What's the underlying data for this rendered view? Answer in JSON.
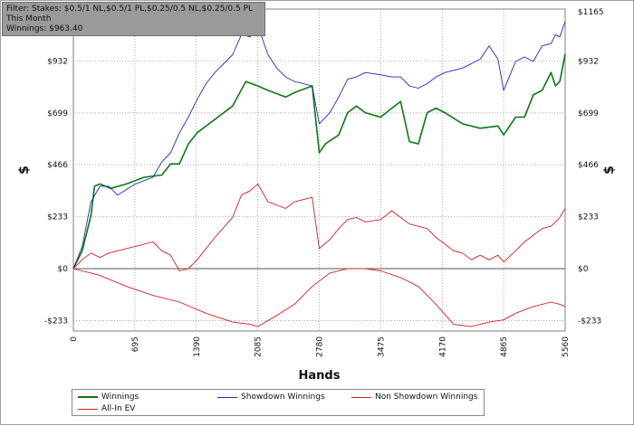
{
  "filter": {
    "line1": "Filter: Stakes: $0.5/1 NL,$0.5/1 PL,$0.25/0.5 NL,$0.25/0.5 PL",
    "line2": "This Month",
    "line3": "Winnings: $963.40"
  },
  "chart_data": {
    "type": "line",
    "xlabel": "Hands",
    "ylabel": "$",
    "xlim": [
      0,
      5560
    ],
    "ylim": [
      -280,
      1165
    ],
    "x_ticks": [
      0,
      695,
      1390,
      2085,
      2780,
      3475,
      4170,
      4865,
      5560
    ],
    "x_tick_labels": [
      "0",
      "695",
      "1390",
      "2085",
      "2780",
      "3475",
      "4170",
      "4865",
      "5560"
    ],
    "y_ticks": [
      -233,
      0,
      233,
      466,
      699,
      932
    ],
    "y_tick_labels": [
      "-$233",
      "$0",
      "$233",
      "$466",
      "$699",
      "$932"
    ],
    "y_top_label": "$1165",
    "grid": true,
    "legend_position": "bottom",
    "series": [
      {
        "name": "Winnings",
        "color": "#0a7a10",
        "width": 1.6,
        "points": [
          [
            0,
            0
          ],
          [
            100,
            80
          ],
          [
            200,
            240
          ],
          [
            240,
            370
          ],
          [
            300,
            380
          ],
          [
            420,
            360
          ],
          [
            600,
            380
          ],
          [
            800,
            410
          ],
          [
            1000,
            420
          ],
          [
            1100,
            470
          ],
          [
            1200,
            470
          ],
          [
            1300,
            560
          ],
          [
            1400,
            610
          ],
          [
            1600,
            670
          ],
          [
            1800,
            730
          ],
          [
            1950,
            840
          ],
          [
            2085,
            820
          ],
          [
            2200,
            800
          ],
          [
            2400,
            770
          ],
          [
            2500,
            790
          ],
          [
            2700,
            820
          ],
          [
            2780,
            520
          ],
          [
            2850,
            560
          ],
          [
            3000,
            600
          ],
          [
            3100,
            700
          ],
          [
            3200,
            730
          ],
          [
            3300,
            700
          ],
          [
            3475,
            680
          ],
          [
            3600,
            720
          ],
          [
            3700,
            750
          ],
          [
            3800,
            570
          ],
          [
            3900,
            560
          ],
          [
            4000,
            700
          ],
          [
            4100,
            720
          ],
          [
            4200,
            700
          ],
          [
            4400,
            650
          ],
          [
            4600,
            630
          ],
          [
            4800,
            640
          ],
          [
            4865,
            600
          ],
          [
            5000,
            680
          ],
          [
            5100,
            680
          ],
          [
            5200,
            780
          ],
          [
            5300,
            800
          ],
          [
            5400,
            880
          ],
          [
            5450,
            820
          ],
          [
            5500,
            840
          ],
          [
            5560,
            963
          ]
        ]
      },
      {
        "name": "Showdown Winnings",
        "color": "#1a2bc4",
        "width": 0.9,
        "points": [
          [
            0,
            0
          ],
          [
            100,
            100
          ],
          [
            200,
            300
          ],
          [
            300,
            370
          ],
          [
            400,
            370
          ],
          [
            500,
            330
          ],
          [
            700,
            380
          ],
          [
            900,
            410
          ],
          [
            1000,
            480
          ],
          [
            1100,
            520
          ],
          [
            1200,
            610
          ],
          [
            1300,
            680
          ],
          [
            1400,
            760
          ],
          [
            1500,
            830
          ],
          [
            1600,
            880
          ],
          [
            1800,
            960
          ],
          [
            1900,
            1050
          ],
          [
            2000,
            1040
          ],
          [
            2085,
            1090
          ],
          [
            2200,
            960
          ],
          [
            2300,
            900
          ],
          [
            2400,
            860
          ],
          [
            2500,
            840
          ],
          [
            2700,
            820
          ],
          [
            2780,
            650
          ],
          [
            2900,
            700
          ],
          [
            3000,
            770
          ],
          [
            3100,
            850
          ],
          [
            3200,
            860
          ],
          [
            3300,
            880
          ],
          [
            3475,
            870
          ],
          [
            3600,
            860
          ],
          [
            3700,
            860
          ],
          [
            3800,
            820
          ],
          [
            3900,
            810
          ],
          [
            4000,
            830
          ],
          [
            4100,
            860
          ],
          [
            4200,
            880
          ],
          [
            4400,
            900
          ],
          [
            4600,
            940
          ],
          [
            4700,
            1000
          ],
          [
            4800,
            940
          ],
          [
            4865,
            800
          ],
          [
            5000,
            930
          ],
          [
            5100,
            950
          ],
          [
            5200,
            930
          ],
          [
            5300,
            1000
          ],
          [
            5400,
            1010
          ],
          [
            5450,
            1050
          ],
          [
            5500,
            1040
          ],
          [
            5560,
            1110
          ]
        ]
      },
      {
        "name": "Non Showdown Winnings",
        "color": "#d42020",
        "width": 0.9,
        "points": [
          [
            0,
            0
          ],
          [
            100,
            40
          ],
          [
            200,
            70
          ],
          [
            300,
            50
          ],
          [
            400,
            70
          ],
          [
            500,
            80
          ],
          [
            700,
            100
          ],
          [
            900,
            120
          ],
          [
            1000,
            80
          ],
          [
            1100,
            60
          ],
          [
            1200,
            -10
          ],
          [
            1300,
            0
          ],
          [
            1400,
            40
          ],
          [
            1600,
            140
          ],
          [
            1800,
            230
          ],
          [
            1900,
            330
          ],
          [
            2000,
            350
          ],
          [
            2085,
            380
          ],
          [
            2200,
            300
          ],
          [
            2400,
            270
          ],
          [
            2500,
            300
          ],
          [
            2700,
            320
          ],
          [
            2780,
            90
          ],
          [
            2900,
            130
          ],
          [
            3000,
            180
          ],
          [
            3100,
            220
          ],
          [
            3200,
            230
          ],
          [
            3300,
            210
          ],
          [
            3475,
            220
          ],
          [
            3600,
            260
          ],
          [
            3700,
            230
          ],
          [
            3800,
            200
          ],
          [
            3900,
            190
          ],
          [
            4000,
            180
          ],
          [
            4100,
            140
          ],
          [
            4200,
            110
          ],
          [
            4300,
            80
          ],
          [
            4400,
            70
          ],
          [
            4500,
            40
          ],
          [
            4600,
            60
          ],
          [
            4700,
            40
          ],
          [
            4800,
            60
          ],
          [
            4865,
            30
          ],
          [
            5000,
            80
          ],
          [
            5100,
            120
          ],
          [
            5200,
            150
          ],
          [
            5300,
            180
          ],
          [
            5400,
            190
          ],
          [
            5450,
            210
          ],
          [
            5500,
            230
          ],
          [
            5560,
            270
          ]
        ]
      },
      {
        "name": "All-In EV",
        "color": "#d42020",
        "width": 0.9,
        "points": [
          [
            0,
            0
          ],
          [
            300,
            -30
          ],
          [
            600,
            -80
          ],
          [
            900,
            -120
          ],
          [
            1200,
            -150
          ],
          [
            1500,
            -200
          ],
          [
            1800,
            -240
          ],
          [
            2000,
            -250
          ],
          [
            2085,
            -260
          ],
          [
            2300,
            -210
          ],
          [
            2500,
            -160
          ],
          [
            2700,
            -80
          ],
          [
            2900,
            -20
          ],
          [
            3100,
            0
          ],
          [
            3300,
            0
          ],
          [
            3475,
            -10
          ],
          [
            3700,
            -40
          ],
          [
            3900,
            -80
          ],
          [
            4100,
            -160
          ],
          [
            4300,
            -250
          ],
          [
            4500,
            -260
          ],
          [
            4700,
            -240
          ],
          [
            4865,
            -230
          ],
          [
            5000,
            -200
          ],
          [
            5200,
            -170
          ],
          [
            5400,
            -150
          ],
          [
            5500,
            -160
          ],
          [
            5560,
            -170
          ]
        ]
      }
    ]
  },
  "legend": {
    "items": [
      {
        "label": "Winnings",
        "color": "#0a7a10"
      },
      {
        "label": "Showdown Winnings",
        "color": "#1a2bc4"
      },
      {
        "label": "Non Showdown Winnings",
        "color": "#d42020"
      },
      {
        "label": "All-In EV",
        "color": "#d42020"
      }
    ]
  }
}
